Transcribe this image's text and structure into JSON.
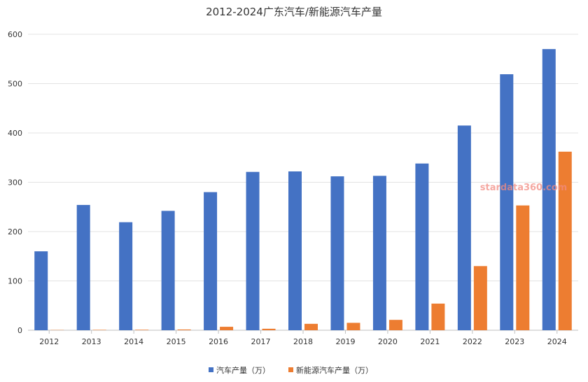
{
  "chart_data": {
    "type": "bar",
    "title": "2012-2024广东汽车/新能源汽车产量",
    "categories": [
      "2012",
      "2013",
      "2014",
      "2015",
      "2016",
      "2017",
      "2018",
      "2019",
      "2020",
      "2021",
      "2022",
      "2023",
      "2024"
    ],
    "series": [
      {
        "name": "汽车产量（万）",
        "color": "#4472c4",
        "values": [
          160,
          254,
          219,
          242,
          280,
          321,
          322,
          312,
          313,
          338,
          415,
          519,
          570
        ]
      },
      {
        "name": "新能源汽车产量（万）",
        "color": "#ed7d31",
        "values": [
          0.5,
          0.8,
          1,
          1.5,
          7,
          3,
          13,
          15,
          21,
          54,
          130,
          253,
          362
        ]
      }
    ],
    "ylim": [
      0,
      600
    ],
    "yticks": [
      0,
      100,
      200,
      300,
      400,
      500,
      600
    ],
    "grid": true,
    "legend": "bottom"
  },
  "watermark": "stardata360.com"
}
